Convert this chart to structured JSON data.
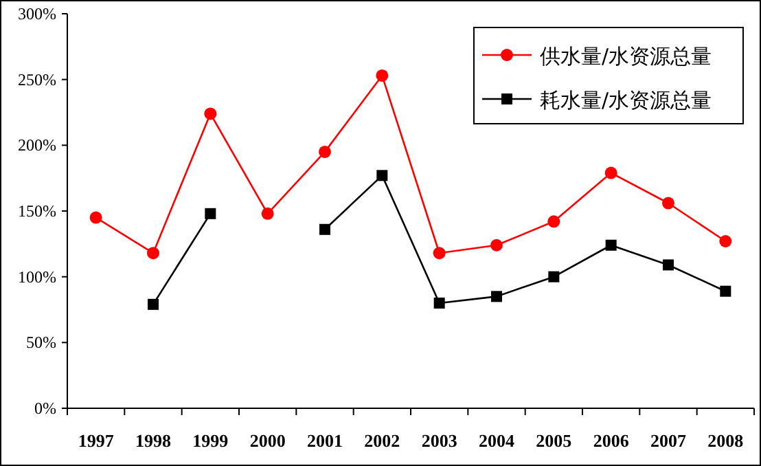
{
  "chart_data": {
    "type": "line",
    "categories": [
      "1997",
      "1998",
      "1999",
      "2000",
      "2001",
      "2002",
      "2003",
      "2004",
      "2005",
      "2006",
      "2007",
      "2008"
    ],
    "series": [
      {
        "name": "供水量/水资源总量",
        "color": "#ff0000",
        "marker": "circle",
        "values": [
          145,
          118,
          224,
          148,
          195,
          253,
          118,
          124,
          142,
          179,
          156,
          127
        ]
      },
      {
        "name": "耗水量/水资源总量",
        "color": "#000000",
        "marker": "square",
        "values": [
          null,
          79,
          148,
          null,
          136,
          177,
          80,
          85,
          100,
          124,
          109,
          89
        ]
      }
    ],
    "ylim": [
      0,
      300
    ],
    "yticks": [
      {
        "value": 0,
        "label": "0%"
      },
      {
        "value": 50,
        "label": "50%"
      },
      {
        "value": 100,
        "label": "100%"
      },
      {
        "value": 150,
        "label": "150%"
      },
      {
        "value": 200,
        "label": "200%"
      },
      {
        "value": 250,
        "label": "250%"
      },
      {
        "value": 300,
        "label": "300%"
      }
    ],
    "grid": false,
    "legend": "top right"
  }
}
